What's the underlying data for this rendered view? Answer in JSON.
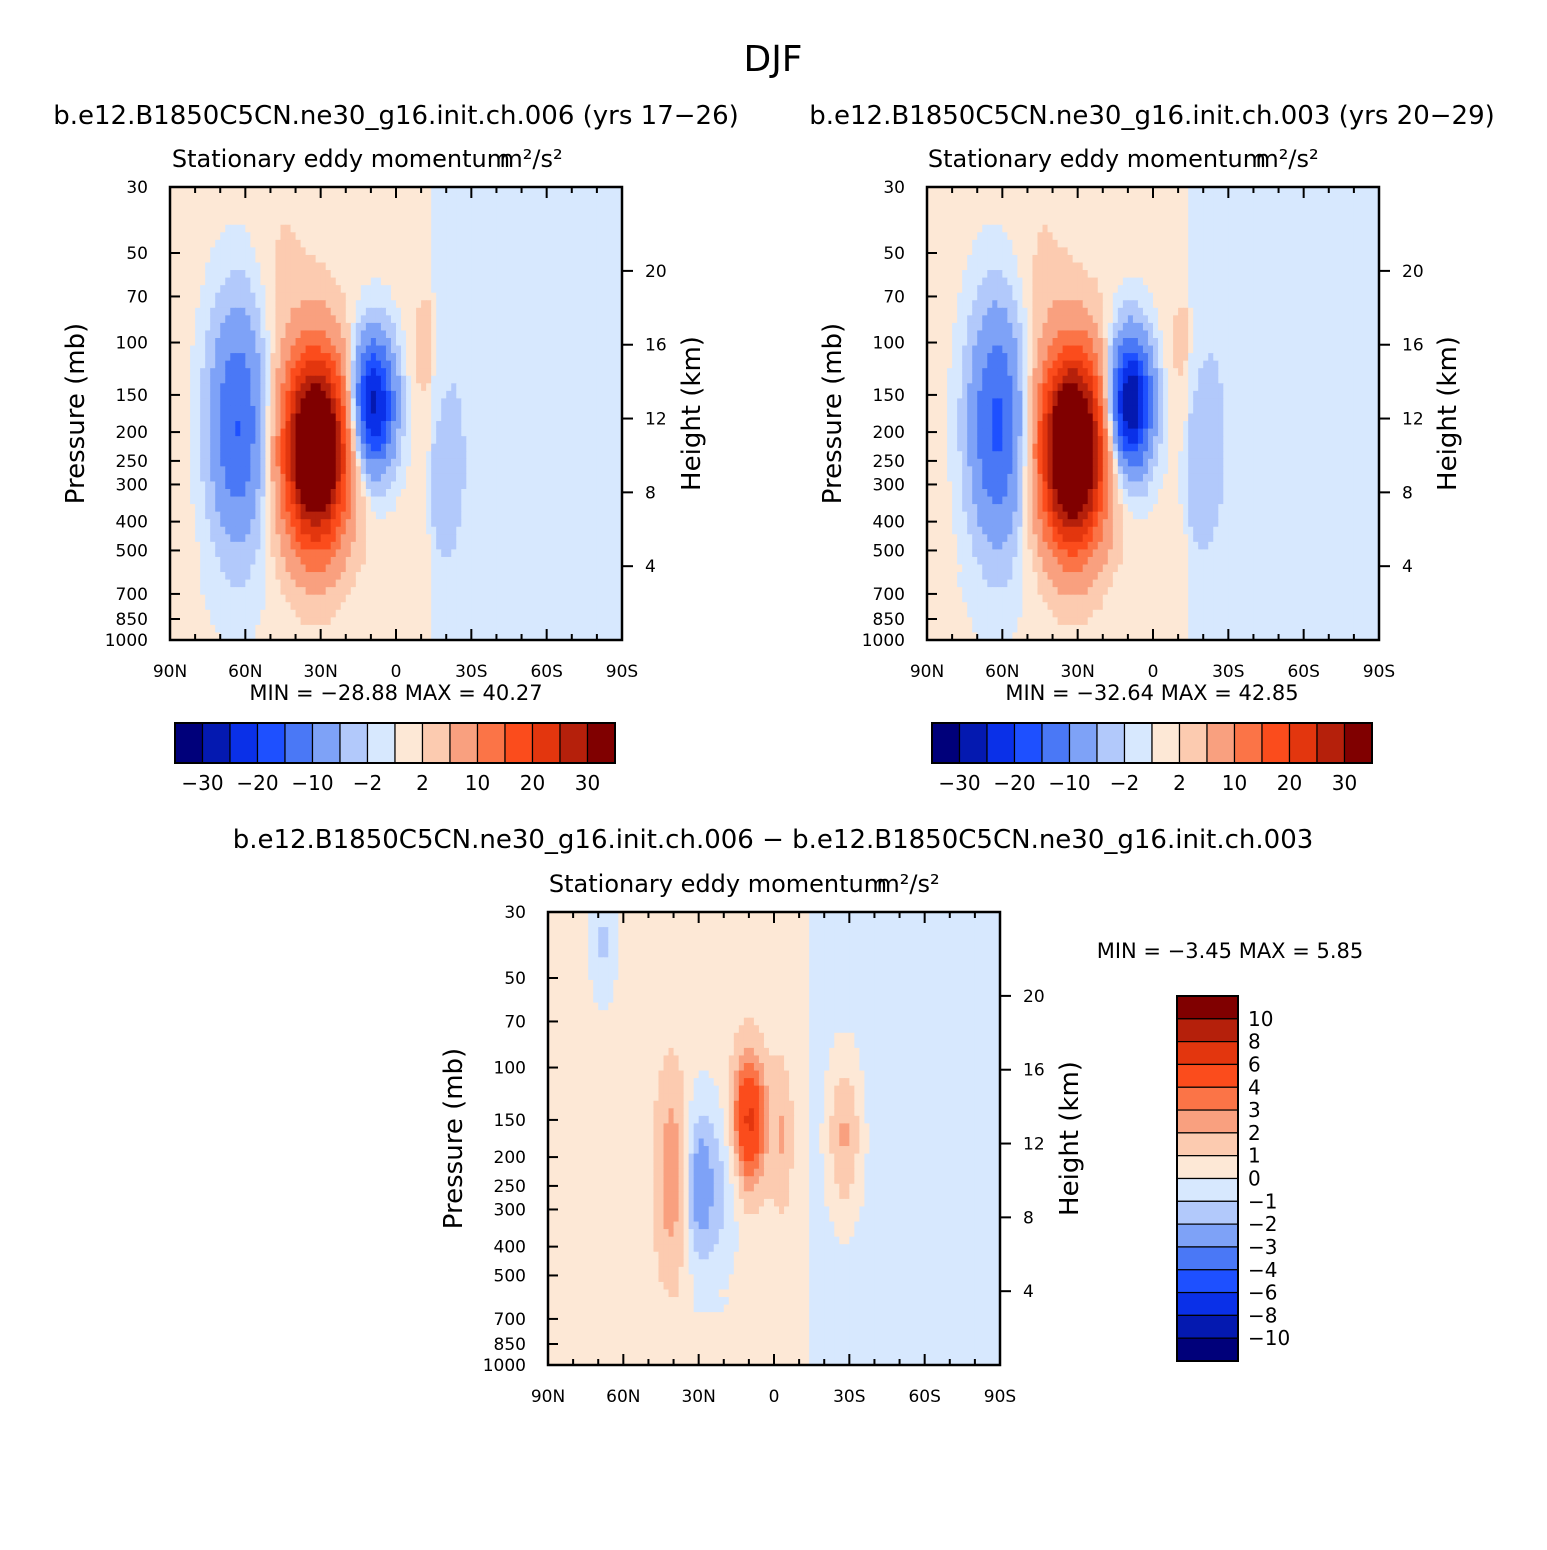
{
  "page": {
    "title": "DJF",
    "diff_title": "b.e12.B1850C5CN.ne30_g16.init.ch.006 − b.e12.B1850C5CN.ne30_g16.init.ch.003"
  },
  "palette": {
    "colors": [
      "#00007a",
      "#0419b0",
      "#0a30e8",
      "#1e50ff",
      "#4a78f6",
      "#7ea2f7",
      "#b2c9fb",
      "#d7e8fe",
      "#fde8d6",
      "#fccbb0",
      "#f9a07f",
      "#fb7447",
      "#fb4c1c",
      "#e3360e",
      "#b5200b",
      "#800000"
    ],
    "missing_band_color": "#ffffff"
  },
  "chart_data": [
    {
      "type": "heatmap",
      "panel_title": "b.e12.B1850C5CN.ne30_g16.init.ch.006 (yrs 17−26)",
      "subtitle": "Stationary eddy momentum",
      "units": "m²/s²",
      "ylabel": "Pressure (mb)",
      "y2label": "Height (km)",
      "x_ticks": [
        "90N",
        "60N",
        "30N",
        "0",
        "30S",
        "60S",
        "90S"
      ],
      "y_ticks": [
        "30",
        "50",
        "70",
        "100",
        "150",
        "200",
        "250",
        "300",
        "400",
        "500",
        "700",
        "850",
        "1000"
      ],
      "y_tick_values": [
        30,
        50,
        70,
        100,
        150,
        200,
        250,
        300,
        400,
        500,
        700,
        850,
        1000
      ],
      "y2_ticks": [
        "4",
        "8",
        "12",
        "16",
        "20"
      ],
      "y2_tick_values": [
        4,
        8,
        12,
        16,
        20
      ],
      "xlim": [
        90,
        -90
      ],
      "ylim": [
        1000,
        30
      ],
      "y_scale": "log",
      "min_max": "MIN =  −28.88   MAX =   40.27",
      "min": -28.88,
      "max": 40.27,
      "levels": [
        -30,
        -25,
        -20,
        -15,
        -10,
        -5,
        -2,
        0,
        2,
        5,
        10,
        15,
        20,
        25,
        30
      ],
      "colorbar_labels": [
        "−30",
        "−20",
        "−10",
        "−2",
        "2",
        "10",
        "20",
        "30"
      ],
      "colorbar_label_levels": [
        -30,
        -20,
        -10,
        -2,
        2,
        10,
        20,
        30
      ],
      "colorbar_orientation": "horizontal",
      "features": [
        {
          "lat": 63,
          "p": 190,
          "value": -16,
          "lat_width": 8,
          "p_width": 0.65
        },
        {
          "lat": 32,
          "p": 230,
          "value": 46,
          "lat_width": 9,
          "p_width": 0.52
        },
        {
          "lat": 9,
          "p": 160,
          "value": -28,
          "lat_width": 6,
          "p_width": 0.36
        },
        {
          "lat": -20,
          "p": 250,
          "value": -2.5,
          "lat_width": 6,
          "p_width": 0.6
        },
        {
          "lat": -12,
          "p": 110,
          "value": 2.4,
          "lat_width": 5,
          "p_width": 0.4
        },
        {
          "lat": 45,
          "p": 60,
          "value": 1.5,
          "lat_width": 8,
          "p_width": 0.6
        }
      ],
      "background": {
        "north_of_15S": 0.8,
        "south_of_15S": -0.8
      }
    },
    {
      "type": "heatmap",
      "panel_title": "b.e12.B1850C5CN.ne30_g16.init.ch.003 (yrs 20−29)",
      "subtitle": "Stationary eddy momentum",
      "units": "m²/s²",
      "ylabel": "Pressure (mb)",
      "y2label": "Height (km)",
      "x_ticks": [
        "90N",
        "60N",
        "30N",
        "0",
        "30S",
        "60S",
        "90S"
      ],
      "y_ticks": [
        "30",
        "50",
        "70",
        "100",
        "150",
        "200",
        "250",
        "300",
        "400",
        "500",
        "700",
        "850",
        "1000"
      ],
      "y_tick_values": [
        30,
        50,
        70,
        100,
        150,
        200,
        250,
        300,
        400,
        500,
        700,
        850,
        1000
      ],
      "y2_ticks": [
        "4",
        "8",
        "12",
        "16",
        "20"
      ],
      "y2_tick_values": [
        4,
        8,
        12,
        16,
        20
      ],
      "xlim": [
        90,
        -90
      ],
      "ylim": [
        1000,
        30
      ],
      "y_scale": "log",
      "min_max": "MIN =  −32.64   MAX =   42.85",
      "min": -32.64,
      "max": 42.85,
      "levels": [
        -30,
        -25,
        -20,
        -15,
        -10,
        -5,
        -2,
        0,
        2,
        5,
        10,
        15,
        20,
        25,
        30
      ],
      "colorbar_labels": [
        "−30",
        "−20",
        "−10",
        "−2",
        "2",
        "10",
        "20",
        "30"
      ],
      "colorbar_label_levels": [
        -30,
        -20,
        -10,
        -2,
        2,
        10,
        20,
        30
      ],
      "colorbar_orientation": "horizontal",
      "features": [
        {
          "lat": 62,
          "p": 190,
          "value": -17,
          "lat_width": 8,
          "p_width": 0.65
        },
        {
          "lat": 32,
          "p": 230,
          "value": 48,
          "lat_width": 9,
          "p_width": 0.52
        },
        {
          "lat": 9,
          "p": 160,
          "value": -32,
          "lat_width": 6,
          "p_width": 0.36
        },
        {
          "lat": -20,
          "p": 220,
          "value": -3.5,
          "lat_width": 6,
          "p_width": 0.55
        },
        {
          "lat": -12,
          "p": 110,
          "value": 2.2,
          "lat_width": 5,
          "p_width": 0.4
        },
        {
          "lat": 45,
          "p": 60,
          "value": 1.5,
          "lat_width": 8,
          "p_width": 0.6
        }
      ],
      "background": {
        "north_of_15S": 0.8,
        "south_of_15S": -0.8
      }
    },
    {
      "type": "heatmap",
      "panel_title": "",
      "subtitle": "Stationary eddy momentum",
      "units": "m²/s²",
      "ylabel": "Pressure (mb)",
      "y2label": "Height (km)",
      "x_ticks": [
        "90N",
        "60N",
        "30N",
        "0",
        "30S",
        "60S",
        "90S"
      ],
      "y_ticks": [
        "30",
        "50",
        "70",
        "100",
        "150",
        "200",
        "250",
        "300",
        "400",
        "500",
        "700",
        "850",
        "1000"
      ],
      "y_tick_values": [
        30,
        50,
        70,
        100,
        150,
        200,
        250,
        300,
        400,
        500,
        700,
        850,
        1000
      ],
      "y2_ticks": [
        "4",
        "8",
        "12",
        "16",
        "20"
      ],
      "y2_tick_values": [
        4,
        8,
        12,
        16,
        20
      ],
      "xlim": [
        90,
        -90
      ],
      "ylim": [
        1000,
        30
      ],
      "y_scale": "log",
      "min_max": "MIN =   −3.45   MAX =    5.85",
      "min": -3.45,
      "max": 5.85,
      "levels": [
        -10,
        -8,
        -6,
        -4,
        -3,
        -2,
        -1,
        0,
        1,
        2,
        3,
        4,
        6,
        8,
        10
      ],
      "colorbar_labels": [
        "10",
        "8",
        "6",
        "4",
        "3",
        "2",
        "1",
        "0",
        "−1",
        "−2",
        "−3",
        "−4",
        "−6",
        "−8",
        "−10"
      ],
      "colorbar_label_levels": [
        10,
        8,
        6,
        4,
        3,
        2,
        1,
        0,
        -1,
        -2,
        -3,
        -4,
        -6,
        -8,
        -10
      ],
      "colorbar_orientation": "vertical",
      "features": [
        {
          "lat": 40,
          "p": 230,
          "value": 2.4,
          "lat_width": 5,
          "p_width": 0.55
        },
        {
          "lat": 30,
          "p": 250,
          "value": -3.45,
          "lat_width": 4.5,
          "p_width": 0.45
        },
        {
          "lat": 10,
          "p": 150,
          "value": 5.85,
          "lat_width": 4.5,
          "p_width": 0.35
        },
        {
          "lat": -28,
          "p": 170,
          "value": 2.6,
          "lat_width": 5,
          "p_width": 0.45
        },
        {
          "lat": -3,
          "p": 170,
          "value": 1.5,
          "lat_width": 3,
          "p_width": 0.4
        },
        {
          "lat": 68,
          "p": 38,
          "value": -1.6,
          "lat_width": 4,
          "p_width": 0.35
        },
        {
          "lat": 20,
          "p": 260,
          "value": -1.4,
          "lat_width": 5,
          "p_width": 0.5
        }
      ],
      "background": {
        "north_of_15S": 0.5,
        "south_of_15S": -0.5
      }
    }
  ]
}
